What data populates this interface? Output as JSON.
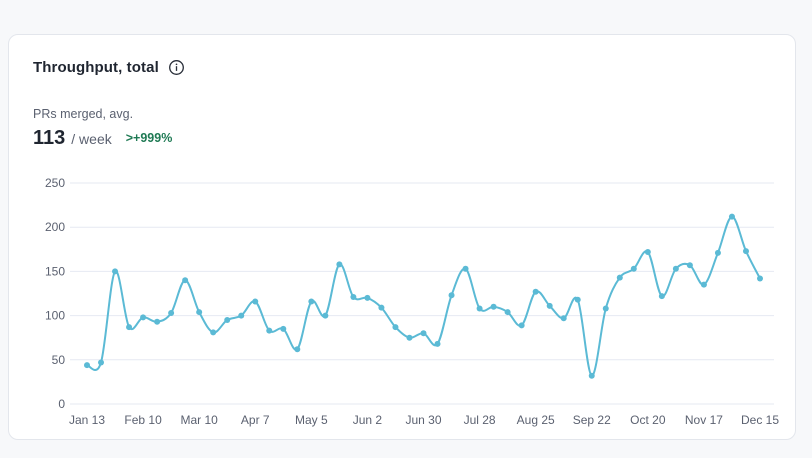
{
  "card": {
    "title": "Throughput, total",
    "info_icon": "info-icon",
    "metric_label": "PRs merged, avg.",
    "metric_value": "113",
    "metric_unit": "/ week",
    "metric_change": ">+999%"
  },
  "colors": {
    "line": "#5bbad5",
    "grid": "#e6e9f2",
    "change_positive": "#1f7a54"
  },
  "chart_data": {
    "type": "line",
    "title": "",
    "xlabel": "",
    "ylabel": "",
    "ylim": [
      0,
      250
    ],
    "yticks": [
      0,
      50,
      100,
      150,
      200,
      250
    ],
    "grid": true,
    "xtick_labels": [
      "Jan 13",
      "Feb 10",
      "Mar 10",
      "Apr 7",
      "May 5",
      "Jun 2",
      "Jun 30",
      "Jul 28",
      "Aug 25",
      "Sep 22",
      "Oct 20",
      "Nov 17",
      "Dec 15"
    ],
    "xtick_week_index": [
      0,
      4,
      8,
      12,
      16,
      20,
      24,
      28,
      32,
      36,
      40,
      44,
      48
    ],
    "series": [
      {
        "values": [
          44,
          47,
          150,
          87,
          98,
          93,
          103,
          140,
          104,
          81,
          95,
          100,
          116,
          83,
          85,
          62,
          116,
          100,
          158,
          121,
          120,
          109,
          87,
          75,
          80,
          68,
          123,
          153,
          108,
          110,
          104,
          89,
          127,
          111,
          97,
          118,
          32,
          108,
          143,
          153,
          172,
          122,
          153,
          157,
          135,
          171,
          212,
          173,
          142
        ]
      }
    ]
  }
}
